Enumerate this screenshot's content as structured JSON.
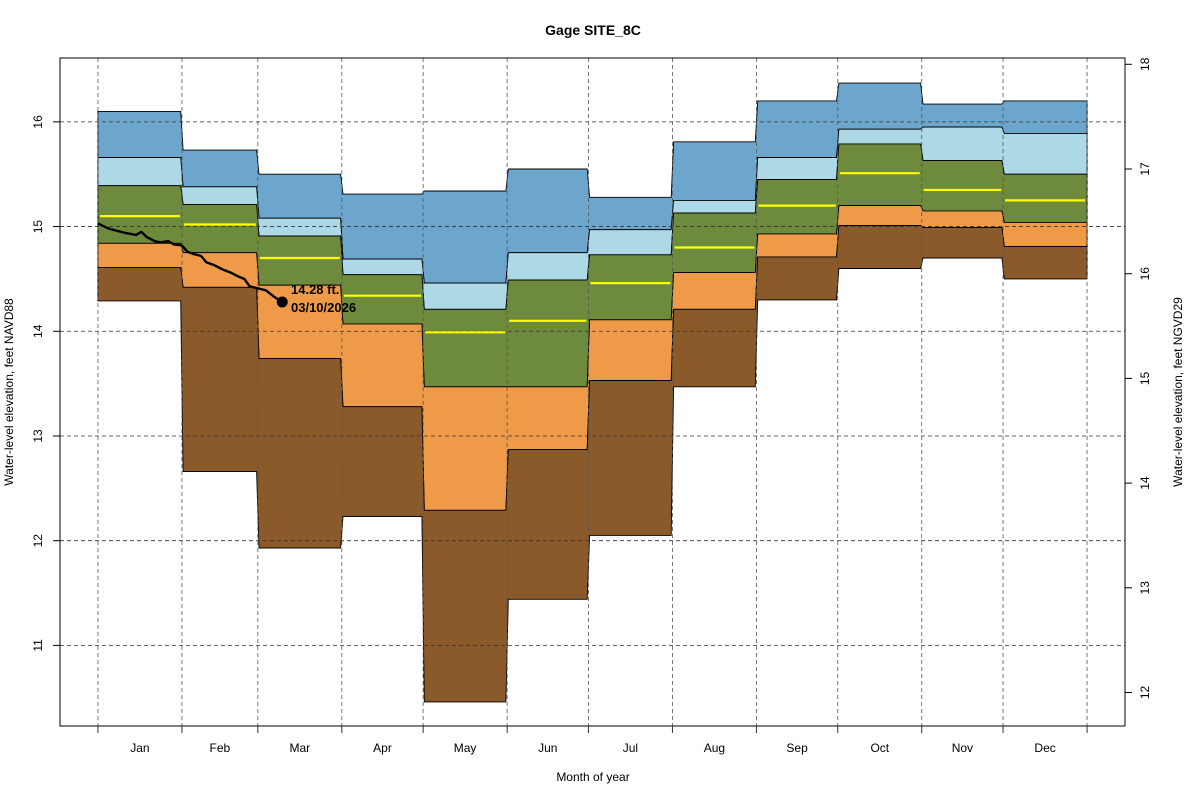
{
  "chart_data": {
    "type": "area",
    "title": "Gage SITE_8C",
    "xlabel": "Month of year",
    "ylabel": "Water-level elevation, feet NAVD88",
    "ylabel_right": "Water-level elevation, feet NGVD29",
    "datum_offset_ngvd29_minus_navd88": 1.45,
    "xlim_days": [
      -14,
      379
    ],
    "ylim": [
      10.23,
      16.61
    ],
    "ylim_right": [
      11.68,
      18.06
    ],
    "grid": true,
    "yticks": [
      11,
      12,
      13,
      14,
      15,
      16
    ],
    "yticks_right": [
      12,
      13,
      14,
      15,
      16,
      17,
      18
    ],
    "months": [
      "Jan",
      "Feb",
      "Mar",
      "Apr",
      "May",
      "Jun",
      "Jul",
      "Aug",
      "Sep",
      "Oct",
      "Nov",
      "Dec"
    ],
    "month_start_days": [
      0,
      31,
      59,
      90,
      120,
      151,
      181,
      212,
      243,
      273,
      304,
      334,
      365
    ],
    "band_colors": {
      "max_to_p90": "#6CA6CD",
      "p90_to_p75": "#ADD8E6",
      "p75_to_p25": "#6E8B3D",
      "p25_to_p10": "#EE9A49",
      "p10_to_min": "#8B5A2B",
      "median": "#FFFF00",
      "observed": "#000000"
    },
    "series": [
      {
        "name": "max",
        "values": [
          16.1,
          15.73,
          15.5,
          15.31,
          15.34,
          15.55,
          15.28,
          15.81,
          16.2,
          16.37,
          16.17,
          16.2
        ]
      },
      {
        "name": "p90",
        "values": [
          15.66,
          15.38,
          15.08,
          14.69,
          14.46,
          14.75,
          14.97,
          15.25,
          15.66,
          15.93,
          15.95,
          15.89
        ]
      },
      {
        "name": "p75",
        "values": [
          15.39,
          15.21,
          14.91,
          14.54,
          14.21,
          14.49,
          14.73,
          15.13,
          15.45,
          15.79,
          15.63,
          15.5
        ]
      },
      {
        "name": "median",
        "values": [
          15.1,
          15.02,
          14.7,
          14.34,
          13.99,
          14.1,
          14.46,
          14.8,
          15.2,
          15.51,
          15.35,
          15.25
        ]
      },
      {
        "name": "p25",
        "values": [
          14.84,
          14.75,
          14.44,
          14.07,
          13.47,
          13.47,
          14.11,
          14.56,
          14.93,
          15.2,
          15.15,
          15.04
        ]
      },
      {
        "name": "p10",
        "values": [
          14.61,
          14.42,
          13.74,
          13.28,
          12.29,
          12.87,
          13.53,
          14.21,
          14.71,
          15.01,
          14.99,
          14.81
        ]
      },
      {
        "name": "min",
        "values": [
          14.29,
          12.66,
          11.93,
          12.23,
          10.46,
          11.44,
          12.05,
          13.47,
          14.3,
          14.6,
          14.7,
          14.5
        ]
      }
    ],
    "observed": {
      "name": "Current water year daily values",
      "day": [
        0,
        4,
        10,
        14,
        16,
        18,
        21,
        23,
        26,
        28,
        31,
        33,
        35,
        38,
        40,
        43,
        46,
        49,
        52,
        54,
        56,
        59,
        62,
        65,
        68
      ],
      "value": [
        15.03,
        14.98,
        14.94,
        14.92,
        14.95,
        14.9,
        14.86,
        14.85,
        14.86,
        14.83,
        14.82,
        14.76,
        14.74,
        14.72,
        14.66,
        14.63,
        14.59,
        14.56,
        14.52,
        14.5,
        14.43,
        14.41,
        14.39,
        14.33,
        14.28
      ]
    },
    "annotation": {
      "value_label": "14.28 ft.",
      "date_label": "03/10/2026",
      "day": 68,
      "value": 14.28
    }
  }
}
